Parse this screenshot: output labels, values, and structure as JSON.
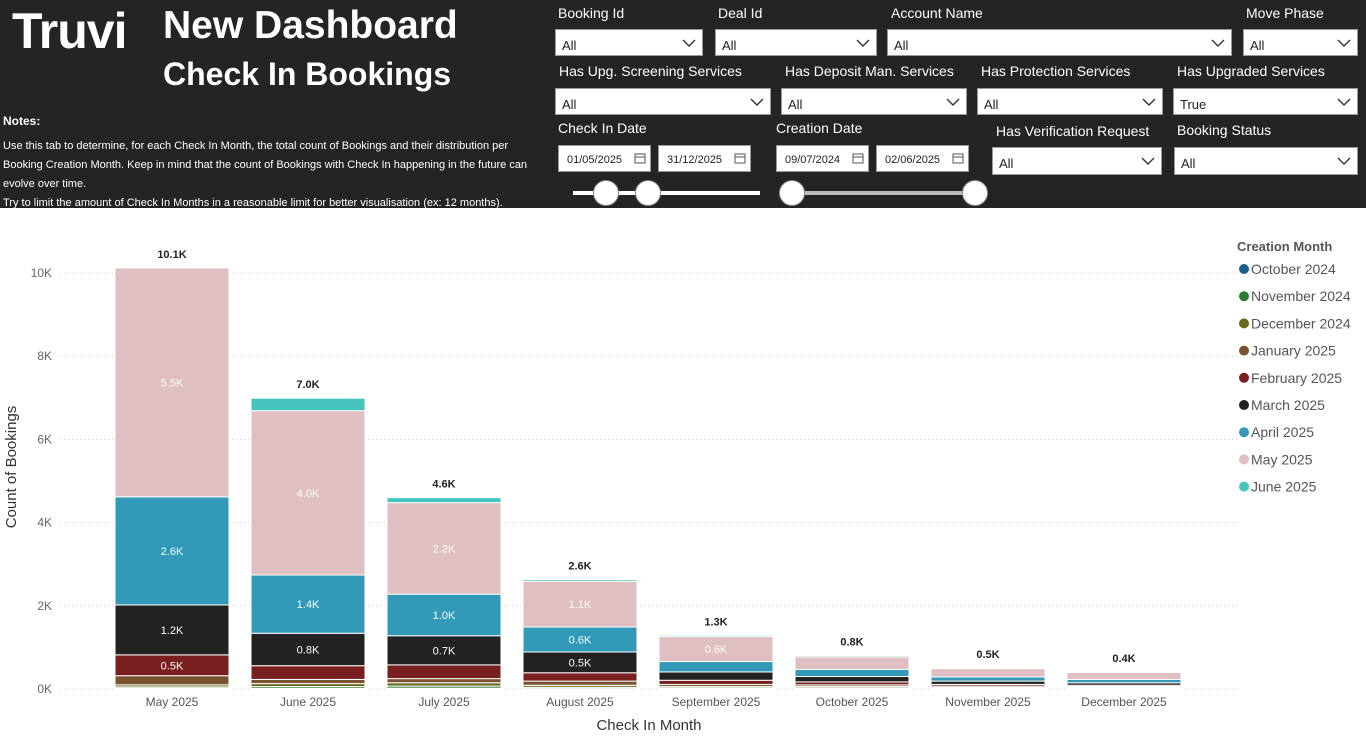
{
  "header": {
    "logo": "Truvi",
    "title": "New Dashboard",
    "subtitle": "Check In Bookings"
  },
  "notes": {
    "title": "Notes:",
    "paragraphs": [
      "Use this tab to determine, for each Check In Month, the total count of Bookings and their distribution per Booking Creation Month. Keep in mind that the count of Bookings with Check In happening in the future can evolve over time.",
      "Try to limit the amount of Check In Months in a reasonable limit for better visualisation (ex: 12 months)."
    ]
  },
  "filters": [
    {
      "label": "Booking Id",
      "value": "All"
    },
    {
      "label": "Deal Id",
      "value": "All"
    },
    {
      "label": "Account Name",
      "value": "All"
    },
    {
      "label": "Move Phase",
      "value": "All"
    },
    {
      "label": "Has Upg. Screening Services",
      "value": "All"
    },
    {
      "label": "Has Deposit Man. Services",
      "value": "All"
    },
    {
      "label": "Has Protection Services",
      "value": "All"
    },
    {
      "label": "Has Upgraded Services",
      "value": "True"
    },
    {
      "label": "Has Verification Request",
      "value": "All"
    },
    {
      "label": "Booking Status",
      "value": "All"
    }
  ],
  "date_filters": [
    {
      "label": "Check In Date",
      "from": "01/05/2025",
      "to": "31/12/2025"
    },
    {
      "label": "Creation Date",
      "from": "09/07/2024",
      "to": "02/06/2025"
    }
  ],
  "chart_data": {
    "type": "bar",
    "stacked": true,
    "x_label": "Check In Month",
    "y_label": "Count of Bookings",
    "legend_title": "Creation Month",
    "legend_position": "right",
    "grid": true,
    "categories": [
      "May 2025",
      "June 2025",
      "July 2025",
      "August 2025",
      "September 2025",
      "October 2025",
      "November 2025",
      "December 2025"
    ],
    "ylim": [
      0,
      10500
    ],
    "yticks": [
      {
        "value": 0,
        "label": "0K"
      },
      {
        "value": 2000,
        "label": "2K"
      },
      {
        "value": 4000,
        "label": "4K"
      },
      {
        "value": 6000,
        "label": "6K"
      },
      {
        "value": 8000,
        "label": "8K"
      },
      {
        "value": 10000,
        "label": "10K"
      }
    ],
    "series": [
      {
        "name": "October 2024",
        "color": "#1f5f8b",
        "values": [
          20,
          20,
          20,
          10,
          10,
          10,
          10,
          10
        ],
        "value_labels": [
          null,
          null,
          null,
          null,
          null,
          null,
          null,
          null
        ]
      },
      {
        "name": "November 2024",
        "color": "#2e7d32",
        "values": [
          30,
          40,
          50,
          30,
          20,
          20,
          10,
          10
        ],
        "value_labels": [
          null,
          null,
          null,
          null,
          null,
          null,
          null,
          null
        ]
      },
      {
        "name": "December 2024",
        "color": "#6b6b1e",
        "values": [
          50,
          70,
          80,
          50,
          30,
          30,
          20,
          20
        ],
        "value_labels": [
          null,
          null,
          null,
          null,
          null,
          null,
          null,
          null
        ]
      },
      {
        "name": "January 2025",
        "color": "#7a5230",
        "values": [
          220,
          100,
          100,
          100,
          50,
          40,
          30,
          20
        ],
        "value_labels": [
          null,
          null,
          null,
          null,
          null,
          null,
          null,
          null
        ]
      },
      {
        "name": "February 2025",
        "color": "#7a1f1f",
        "values": [
          500,
          330,
          330,
          200,
          100,
          70,
          40,
          30
        ],
        "value_labels": [
          "0.5K",
          null,
          null,
          null,
          null,
          null,
          null,
          null
        ]
      },
      {
        "name": "March 2025",
        "color": "#222222",
        "values": [
          1200,
          780,
          700,
          500,
          200,
          130,
          80,
          60
        ],
        "value_labels": [
          "1.2K",
          "0.8K",
          "0.7K",
          "0.5K",
          null,
          null,
          null,
          null
        ]
      },
      {
        "name": "April 2025",
        "color": "#3399b9",
        "values": [
          2600,
          1400,
          1000,
          600,
          250,
          170,
          100,
          80
        ],
        "value_labels": [
          "2.6K",
          "1.4K",
          "1.0K",
          "0.6K",
          null,
          null,
          null,
          null
        ]
      },
      {
        "name": "May 2025",
        "color": "#dfbfc1",
        "values": [
          5500,
          3950,
          2200,
          1100,
          600,
          300,
          200,
          170
        ],
        "value_labels": [
          "5.5K",
          "4.0K",
          "2.2K",
          "1.1K",
          "0.6K",
          null,
          null,
          null
        ]
      },
      {
        "name": "June 2025",
        "color": "#45c3be",
        "values": [
          0,
          300,
          120,
          40,
          30,
          30,
          10,
          10
        ],
        "value_labels": [
          null,
          null,
          null,
          null,
          null,
          null,
          null,
          null
        ]
      }
    ],
    "totals": [
      10120,
      6990,
      4600,
      2630,
      1290,
      800,
      500,
      410
    ],
    "total_labels": [
      "10.1K",
      "7.0K",
      "4.6K",
      "2.6K",
      "1.3K",
      "0.8K",
      "0.5K",
      "0.4K"
    ]
  }
}
